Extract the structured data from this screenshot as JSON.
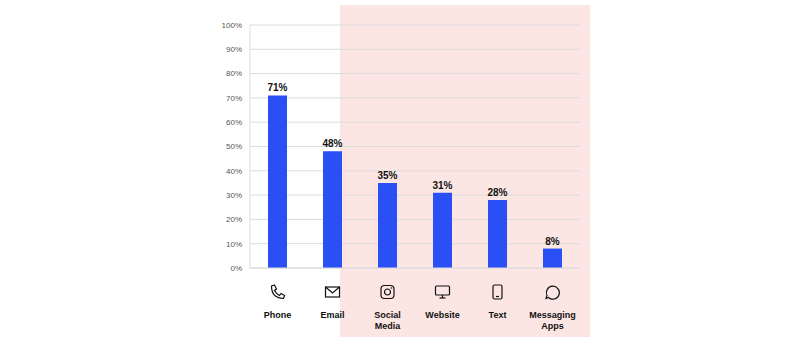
{
  "chart_data": {
    "type": "bar",
    "categories": [
      "Phone",
      "Email",
      "Social Media",
      "Website",
      "Text",
      "Messaging Apps"
    ],
    "values": [
      71,
      48,
      35,
      31,
      28,
      8
    ],
    "value_labels": [
      "71%",
      "48%",
      "35%",
      "31%",
      "28%",
      "8%"
    ],
    "color": "#2a4ff5",
    "ylim": [
      0,
      100
    ],
    "yticks": [
      {
        "value": 0,
        "label": "0%"
      },
      {
        "value": 10,
        "label": "10%"
      },
      {
        "value": 20,
        "label": "20%"
      },
      {
        "value": 30,
        "label": "30%"
      },
      {
        "value": 40,
        "label": "40%"
      },
      {
        "value": 50,
        "label": "50%"
      },
      {
        "value": 60,
        "label": "60%"
      },
      {
        "value": 70,
        "label": "70%"
      },
      {
        "value": 80,
        "label": "80%"
      },
      {
        "value": 90,
        "label": "90%"
      },
      {
        "value": 100,
        "label": "100%"
      }
    ],
    "grid": true,
    "data_labels": true
  }
}
